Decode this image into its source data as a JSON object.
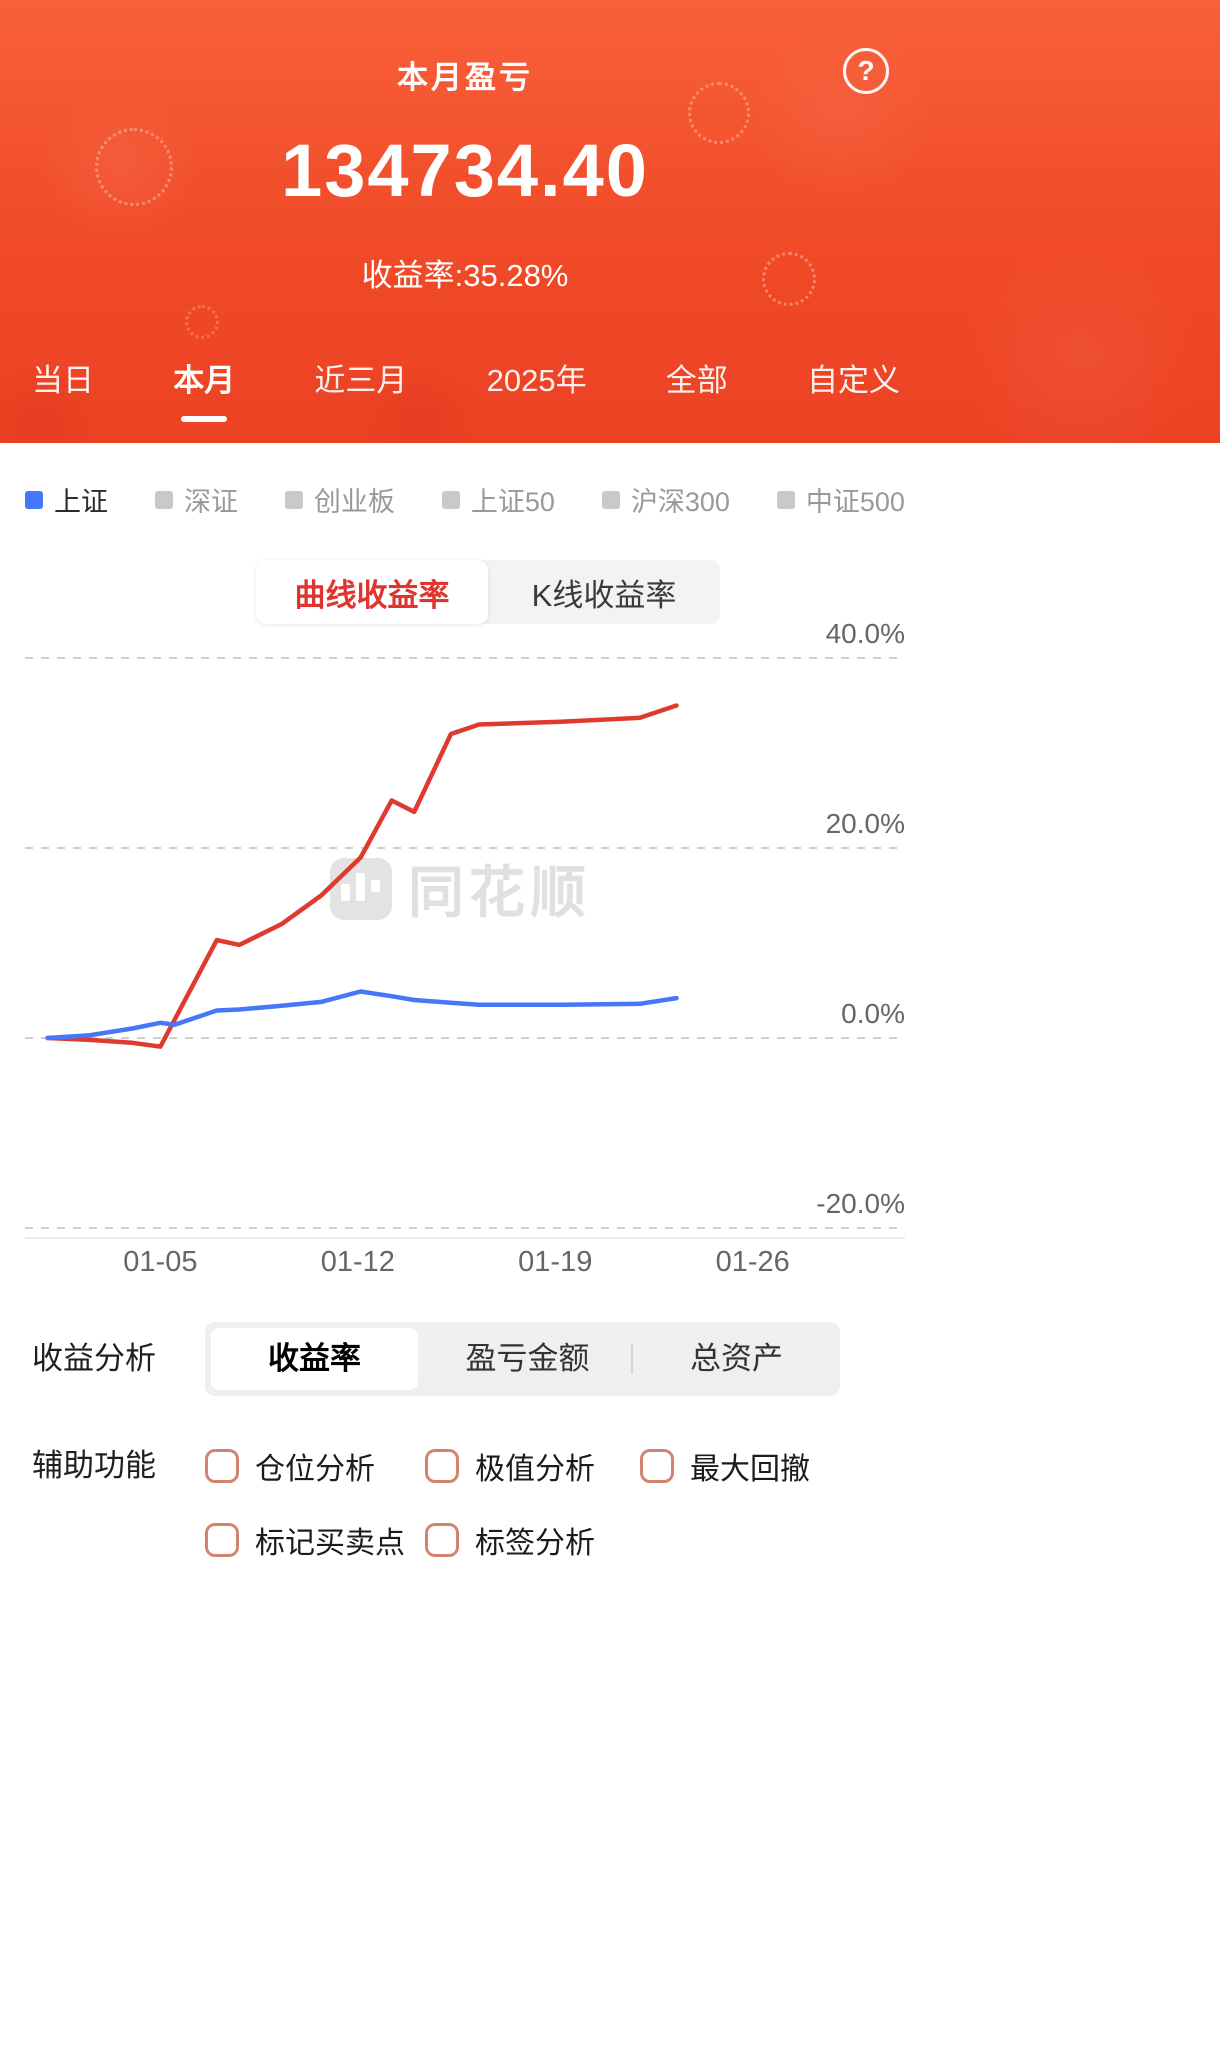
{
  "theme": {
    "header_red": "#f0492a",
    "accent_red": "#df352e",
    "line_red": "#df3a2f",
    "line_blue": "#4677f8",
    "checkbox_border": "#d2856e",
    "inactive_gray": "#c9c9c9"
  },
  "header": {
    "title": "本月盈亏",
    "help_icon": "?",
    "amount": "134734.40",
    "rate_label": "收益率:",
    "rate_value": "35.28%",
    "tabs": [
      {
        "label": "当日",
        "active": false
      },
      {
        "label": "本月",
        "active": true
      },
      {
        "label": "近三月",
        "active": false
      },
      {
        "label": "2025年",
        "active": false
      },
      {
        "label": "全部",
        "active": false
      },
      {
        "label": "自定义",
        "active": false
      }
    ]
  },
  "legend": {
    "items": [
      {
        "label": "上证",
        "active": true,
        "color": "#4677f8"
      },
      {
        "label": "深证",
        "active": false,
        "color": "#c9c9c9"
      },
      {
        "label": "创业板",
        "active": false,
        "color": "#c9c9c9"
      },
      {
        "label": "上证50",
        "active": false,
        "color": "#c9c9c9"
      },
      {
        "label": "沪深300",
        "active": false,
        "color": "#c9c9c9"
      },
      {
        "label": "中证500",
        "active": false,
        "color": "#c9c9c9"
      }
    ]
  },
  "chart_toggle": {
    "options": [
      {
        "label": "曲线收益率",
        "active": true
      },
      {
        "label": "K线收益率",
        "active": false
      }
    ]
  },
  "watermark": {
    "text": "同花顺"
  },
  "chart_data": {
    "type": "line",
    "x_unit": "day of 2025-01",
    "x": [
      1,
      2.5,
      4,
      5,
      5.5,
      7,
      7.8,
      9.3,
      10.7,
      12.1,
      13.2,
      14,
      15.3,
      16.3,
      19.2,
      22,
      23.3
    ],
    "series": [
      {
        "name": "本月收益率",
        "color": "#df3a2f",
        "values": [
          0,
          -0.2,
          -0.5,
          -0.9,
          1.9,
          10.3,
          9.8,
          12.0,
          15.0,
          19.0,
          25.0,
          23.8,
          32.0,
          33.0,
          33.3,
          33.7,
          35.0
        ]
      },
      {
        "name": "上证",
        "color": "#4677f8",
        "values": [
          0,
          0.3,
          1.0,
          1.6,
          1.4,
          2.9,
          3.0,
          3.4,
          3.8,
          4.9,
          4.4,
          4.0,
          3.7,
          3.5,
          3.5,
          3.6,
          4.2
        ]
      }
    ],
    "ylim": [
      -20,
      40
    ],
    "yticks": [
      {
        "value": 40,
        "label": "40.0%"
      },
      {
        "value": 20,
        "label": "20.0%"
      },
      {
        "value": 0,
        "label": "0.0%"
      },
      {
        "value": -20,
        "label": "-20.0%"
      }
    ],
    "xticks": [
      {
        "value": 5,
        "label": "01-05"
      },
      {
        "value": 12,
        "label": "01-12"
      },
      {
        "value": 19,
        "label": "01-19"
      },
      {
        "value": 26,
        "label": "01-26"
      }
    ],
    "x_range": [
      0.2,
      31.4
    ],
    "grid": "dashed-horizontal"
  },
  "analysis": {
    "title": "收益分析",
    "tabs": [
      {
        "label": "收益率",
        "active": true
      },
      {
        "label": "盈亏金额",
        "active": false
      },
      {
        "label": "总资产",
        "active": false
      }
    ]
  },
  "aux": {
    "title": "辅助功能",
    "options": [
      {
        "label": "仓位分析",
        "checked": false
      },
      {
        "label": "极值分析",
        "checked": false
      },
      {
        "label": "最大回撤",
        "checked": false
      },
      {
        "label": "标记买卖点",
        "checked": false
      },
      {
        "label": "标签分析",
        "checked": false
      }
    ]
  }
}
